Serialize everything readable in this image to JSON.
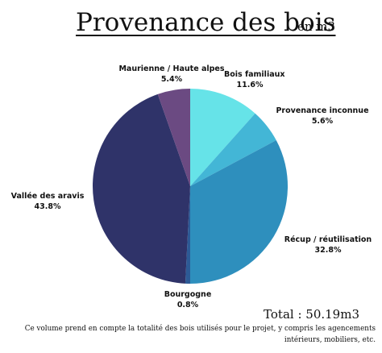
{
  "header": {
    "title": "Provenance des bois",
    "unit": "en m3"
  },
  "chart_data": {
    "type": "pie",
    "title": "Provenance des bois",
    "unit": "en m3",
    "slices": [
      {
        "name": "Bois familiaux",
        "percent": "11.6%",
        "value": 11.6,
        "color": "#66e3e8"
      },
      {
        "name": "Provenance inconnue",
        "percent": "5.6%",
        "value": 5.6,
        "color": "#43b6d6"
      },
      {
        "name": "Récup / réutilisation",
        "percent": "32.8%",
        "value": 32.8,
        "color": "#2e8fbd"
      },
      {
        "name": "Bourgogne",
        "percent": "0.8%",
        "value": 0.8,
        "color": "#2c5a96"
      },
      {
        "name": "Vallée des aravis",
        "percent": "43.8%",
        "value": 43.8,
        "color": "#2f3369"
      },
      {
        "name": "Maurienne / Haute alpes",
        "percent": "5.4%",
        "value": 5.4,
        "color": "#6b4a82"
      }
    ]
  },
  "footer": {
    "total": "Total : 50.19m3",
    "note": "Ce volume prend en compte la totalité des bois utilisés pour le projet, y compris les agencements intérieurs, mobiliers, etc."
  }
}
